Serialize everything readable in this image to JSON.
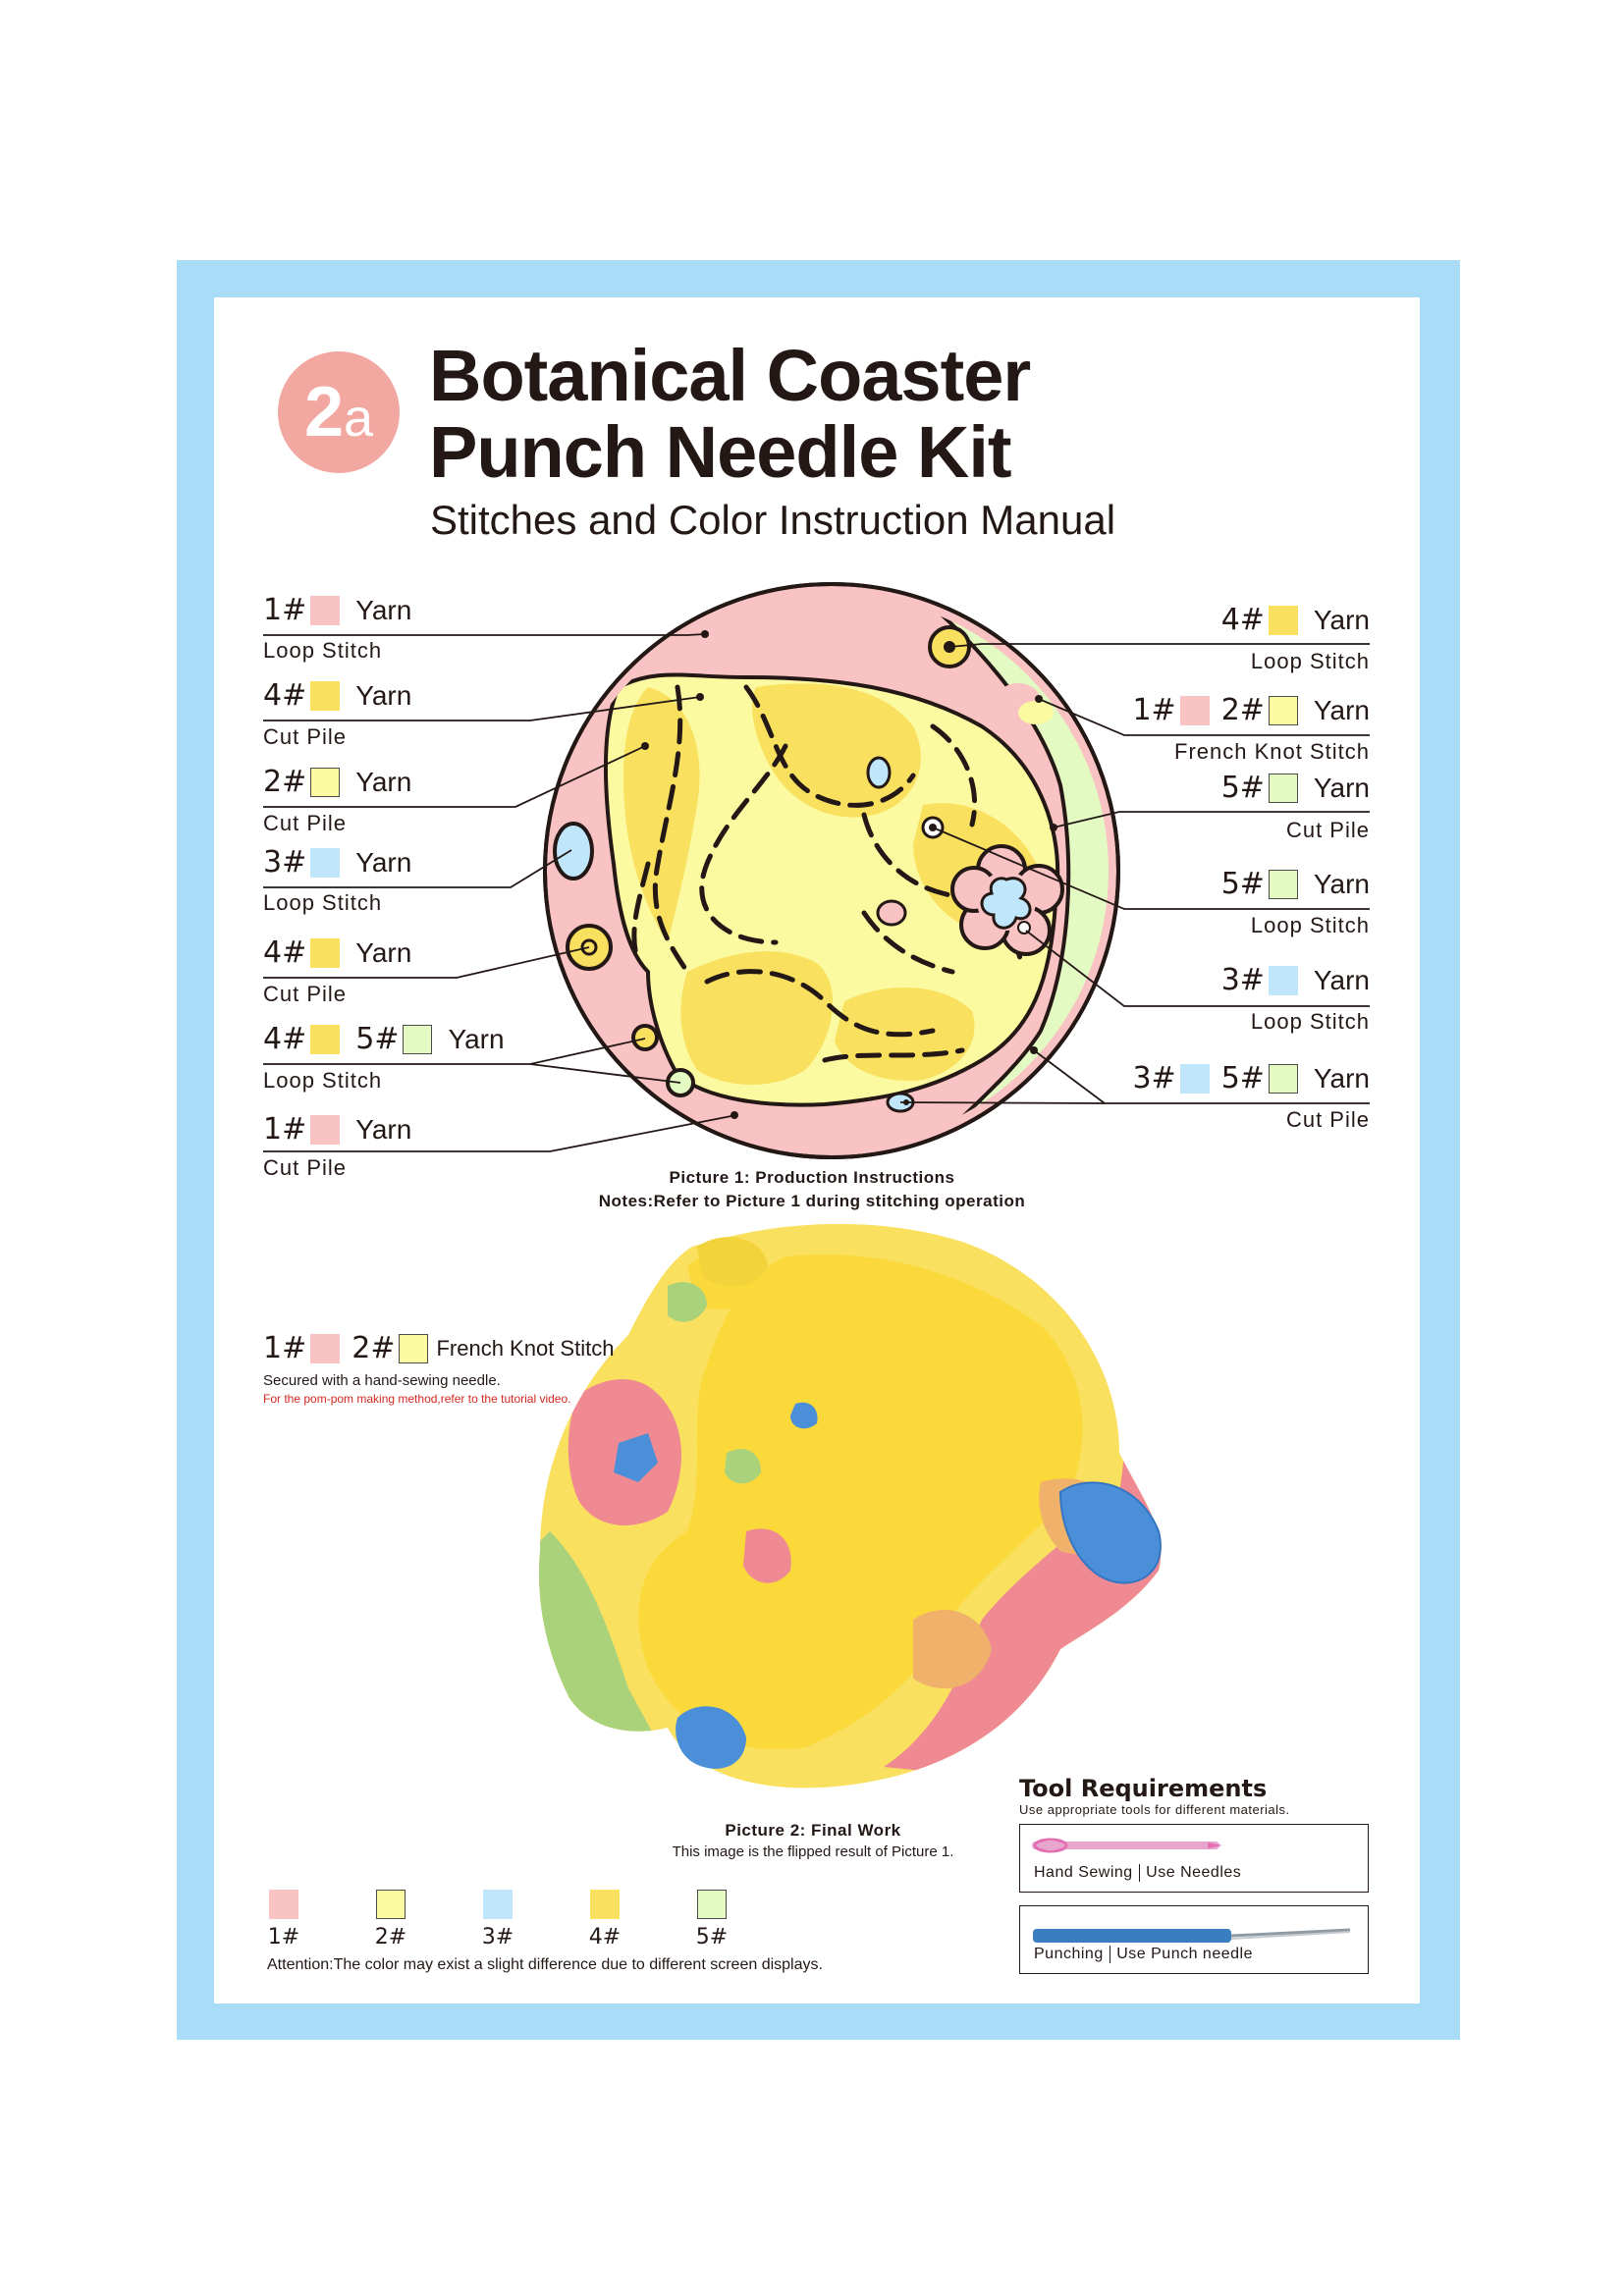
{
  "header": {
    "badge_number": "2",
    "badge_letter": "a",
    "title_line1": "Botanical Coaster",
    "title_line2": "Punch Needle Kit",
    "subtitle": "Stitches and Color Instruction Manual"
  },
  "left_labels": [
    {
      "codes": [
        "1#"
      ],
      "yarn": "Yarn",
      "stitch": "Loop Stitch"
    },
    {
      "codes": [
        "4#"
      ],
      "yarn": "Yarn",
      "stitch": "Cut Pile"
    },
    {
      "codes": [
        "2#"
      ],
      "yarn": "Yarn",
      "stitch": "Cut Pile"
    },
    {
      "codes": [
        "3#"
      ],
      "yarn": "Yarn",
      "stitch": "Loop Stitch"
    },
    {
      "codes": [
        "4#"
      ],
      "yarn": "Yarn",
      "stitch": "Cut Pile"
    },
    {
      "codes": [
        "4#",
        "5#"
      ],
      "yarn": "Yarn",
      "stitch": "Loop Stitch"
    },
    {
      "codes": [
        "1#"
      ],
      "yarn": "Yarn",
      "stitch": "Cut Pile"
    }
  ],
  "right_labels": [
    {
      "codes": [
        "4#"
      ],
      "yarn": "Yarn",
      "stitch": "Loop Stitch"
    },
    {
      "codes": [
        "1#",
        "2#"
      ],
      "yarn": "Yarn",
      "stitch": "French Knot Stitch"
    },
    {
      "codes": [
        "5#"
      ],
      "yarn": "Yarn",
      "stitch": "Cut Pile"
    },
    {
      "codes": [
        "5#"
      ],
      "yarn": "Yarn",
      "stitch": "Loop Stitch"
    },
    {
      "codes": [
        "3#"
      ],
      "yarn": "Yarn",
      "stitch": "Loop Stitch"
    },
    {
      "codes": [
        "3#",
        "5#"
      ],
      "yarn": "Yarn",
      "stitch": "Cut Pile"
    }
  ],
  "picture1": {
    "caption": "Picture 1: Production Instructions",
    "notes": "Notes:Refer to Picture 1 during stitching operation"
  },
  "french_knot_callout": {
    "code1": "1#",
    "code2": "2#",
    "label": "French Knot Stitch",
    "secured": "Secured with a hand-sewing needle.",
    "pompom": "For the pom-pom making method,refer to the tutorial video."
  },
  "picture2": {
    "caption": "Picture 2: Final Work",
    "note": "This image is the flipped result of Picture 1."
  },
  "tools": {
    "heading": "Tool Requirements",
    "subheading": "Use appropriate tools for different materials.",
    "items": [
      {
        "name": "Hand Sewing",
        "use": "Use Needles",
        "icon": "sewing-needle-icon"
      },
      {
        "name": "Punching",
        "use": "Use Punch needle",
        "icon": "punch-needle-icon"
      }
    ]
  },
  "legend": {
    "items": [
      {
        "code": "1#",
        "color": "#f8c3c2"
      },
      {
        "code": "2#",
        "color": "#fbfaa0"
      },
      {
        "code": "3#",
        "color": "#bfe6fa"
      },
      {
        "code": "4#",
        "color": "#f9e05f"
      },
      {
        "code": "5#",
        "color": "#e3fbc3"
      }
    ],
    "attention": "Attention:The color may exist a slight difference due to different screen displays."
  },
  "colors": {
    "frame": "#a9dcf6",
    "badge": "#f2a7a0",
    "c1": "#f8c3c2",
    "c2": "#fbfaa0",
    "c3": "#bfe6fa",
    "c4": "#f9e05f",
    "c5": "#e3fbc3"
  }
}
